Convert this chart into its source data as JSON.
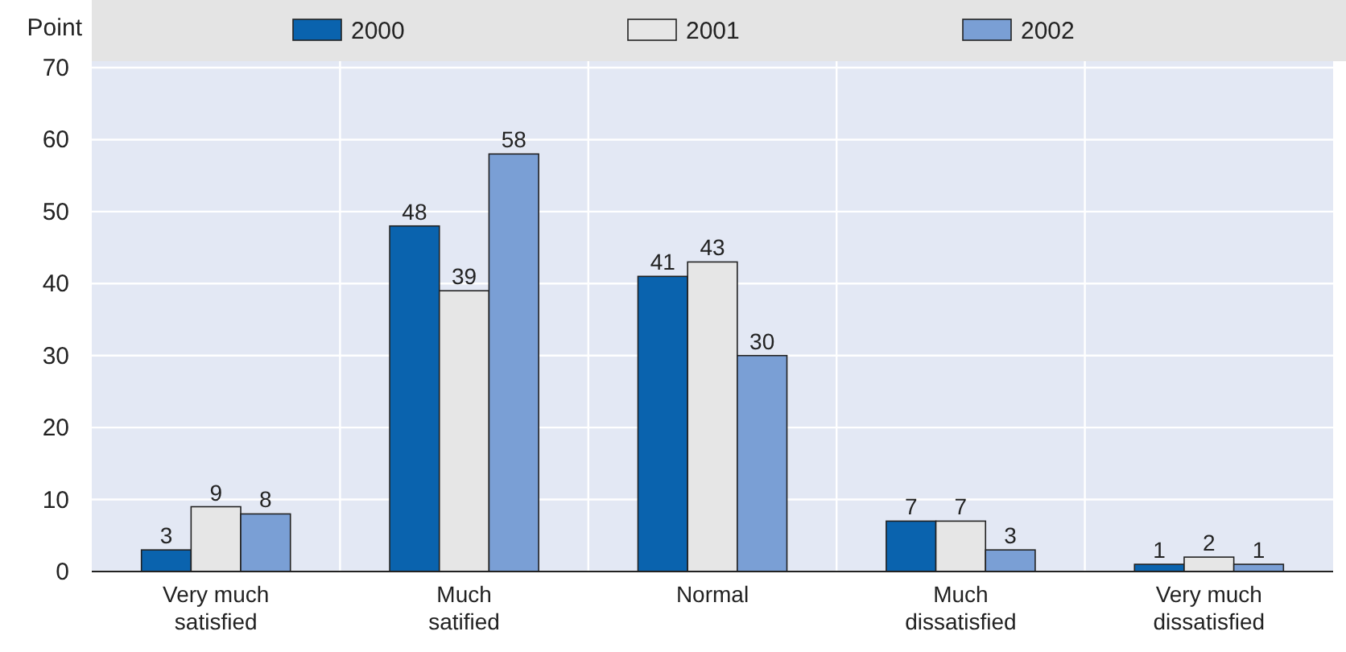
{
  "chart_data": {
    "type": "bar",
    "ylabel": "Point",
    "categories": [
      "Very much satisfied",
      "Much satified",
      "Normal",
      "Much dissatisfied",
      "Very much dissatisfied"
    ],
    "series": [
      {
        "name": "2000",
        "color": "#0a63ae",
        "values": [
          3,
          48,
          41,
          7,
          1
        ]
      },
      {
        "name": "2001",
        "color": "#e6e6e6",
        "values": [
          9,
          39,
          43,
          7,
          2
        ]
      },
      {
        "name": "2002",
        "color": "#7a9fd5",
        "values": [
          8,
          58,
          30,
          3,
          1
        ]
      }
    ],
    "ylim": [
      0,
      70
    ],
    "yticks": [
      0,
      10,
      20,
      30,
      40,
      50,
      60,
      70
    ],
    "grid": true,
    "legend": "top",
    "data_labels": true
  }
}
